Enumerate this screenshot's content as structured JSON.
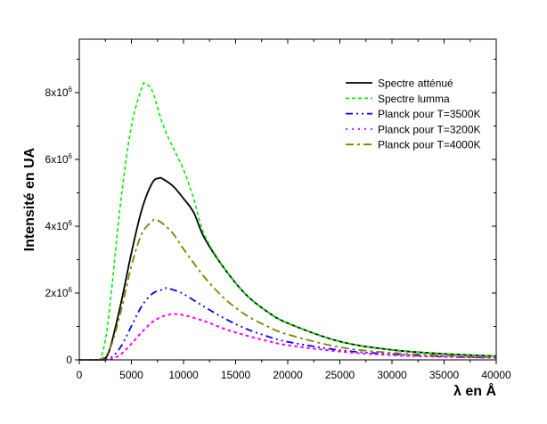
{
  "chart_data": {
    "type": "line",
    "title": "",
    "xlabel": "λ en Å",
    "ylabel": "Intensité en UA",
    "xlim": [
      0,
      40000
    ],
    "ylim": [
      0,
      9600000
    ],
    "xticks": [
      0,
      5000,
      10000,
      15000,
      20000,
      25000,
      30000,
      35000,
      40000
    ],
    "xtick_labels": [
      "0",
      "5000",
      "10000",
      "15000",
      "20000",
      "25000",
      "30000",
      "35000",
      "40000"
    ],
    "yticks": [
      0,
      2000000,
      4000000,
      6000000,
      8000000
    ],
    "ytick_labels": [
      {
        "base": "0",
        "exp": ""
      },
      {
        "base": "2x10",
        "exp": "6"
      },
      {
        "base": "4x10",
        "exp": "6"
      },
      {
        "base": "6x10",
        "exp": "6"
      },
      {
        "base": "8x10",
        "exp": "6"
      }
    ],
    "grid": false,
    "legend_position": "top-right",
    "series": [
      {
        "name": "Spectre atténué",
        "color": "#000000",
        "style": "solid",
        "x": [
          0,
          2000,
          2500,
          3000,
          4000,
          5000,
          6000,
          7000,
          7650,
          8000,
          9000,
          10000,
          11000,
          12000,
          14000,
          16000,
          18000,
          20000,
          25000,
          30000,
          35000,
          40000
        ],
        "y": [
          0,
          0,
          50000,
          400000,
          1700000,
          3200000,
          4500000,
          5300000,
          5440000,
          5420000,
          5200000,
          4830000,
          4400000,
          3650000,
          2700000,
          1950000,
          1450000,
          1100000,
          550000,
          300000,
          180000,
          110000
        ]
      },
      {
        "name": "Spectre lumma",
        "color": "#00ee00",
        "style": "dash",
        "x": [
          0,
          1500,
          2000,
          2500,
          3000,
          4000,
          5000,
          6000,
          6300,
          7000,
          8000,
          9000,
          10000,
          11000,
          12000,
          14000,
          16000,
          18000,
          20000,
          25000,
          30000,
          35000,
          40000
        ],
        "y": [
          0,
          0,
          20000,
          600000,
          1800000,
          4800000,
          7000000,
          8150000,
          8260000,
          8050000,
          7060000,
          6350000,
          5700000,
          4800000,
          3750000,
          2700000,
          1950000,
          1450000,
          1100000,
          550000,
          300000,
          180000,
          110000
        ]
      },
      {
        "name": "Planck pour T=3500K",
        "color": "#0000ff",
        "style": "dashdotdot",
        "x": [
          0,
          2000,
          3000,
          4000,
          5000,
          6000,
          7000,
          8000,
          8300,
          9000,
          10000,
          12000,
          14000,
          16000,
          18000,
          20000,
          25000,
          30000,
          35000,
          40000
        ],
        "y": [
          0,
          0,
          54000,
          400000,
          1010000,
          1610000,
          1980000,
          2110000,
          2150000,
          2100000,
          1970000,
          1590000,
          1230000,
          930000,
          710000,
          540000,
          290000,
          170000,
          100000,
          65000
        ]
      },
      {
        "name": "Planck pour T=3200K",
        "color": "#ff00ff",
        "style": "dot",
        "x": [
          0,
          2000,
          3000,
          4000,
          5000,
          6000,
          7000,
          8000,
          9000,
          10000,
          12000,
          14000,
          16000,
          18000,
          20000,
          25000,
          30000,
          35000,
          40000
        ],
        "y": [
          0,
          0,
          14000,
          170000,
          480000,
          830000,
          1130000,
          1300000,
          1370000,
          1340000,
          1160000,
          920000,
          730000,
          570000,
          440000,
          250000,
          140000,
          90000,
          60000
        ]
      },
      {
        "name": "Planck pour T=4000K",
        "color": "#808000",
        "style": "dashdot",
        "x": [
          0,
          2000,
          3000,
          4000,
          5000,
          6000,
          7000,
          7300,
          8000,
          9000,
          10000,
          12000,
          14000,
          16000,
          18000,
          20000,
          25000,
          30000,
          35000,
          40000
        ],
        "y": [
          0,
          10000,
          380000,
          1470000,
          2810000,
          3780000,
          4150000,
          4200000,
          4080000,
          3780000,
          3320000,
          2480000,
          1820000,
          1340000,
          1010000,
          760000,
          380000,
          210000,
          130000,
          80000
        ]
      }
    ]
  }
}
